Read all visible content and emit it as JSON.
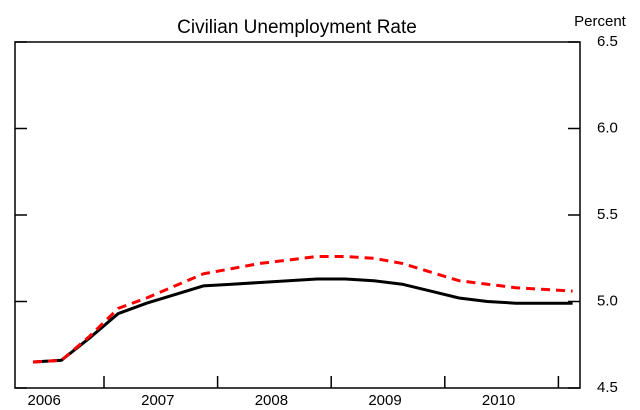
{
  "chart_data": {
    "type": "line",
    "title": "Civilian Unemployment Rate",
    "y_axis_label": "Percent",
    "categories": [
      "2006",
      null,
      null,
      null,
      "2007",
      null,
      null,
      null,
      "2008",
      null,
      null,
      null,
      "2009",
      null,
      null,
      null,
      "2010",
      null,
      null,
      null
    ],
    "series": [
      {
        "color": "#000000",
        "dashed": false,
        "values": [
          4.65,
          4.66,
          4.79,
          4.93,
          4.99,
          5.04,
          5.09,
          5.1,
          5.11,
          5.12,
          5.13,
          5.13,
          5.12,
          5.1,
          5.06,
          5.02,
          5.0,
          4.99,
          4.99,
          4.99
        ]
      },
      {
        "color": "#ff0000",
        "dashed": true,
        "values": [
          4.65,
          4.66,
          4.8,
          4.96,
          5.02,
          5.09,
          5.16,
          5.19,
          5.22,
          5.24,
          5.26,
          5.26,
          5.25,
          5.22,
          5.17,
          5.12,
          5.1,
          5.08,
          5.07,
          5.06
        ]
      }
    ],
    "ylim": [
      4.5,
      6.5
    ],
    "yticks": [
      {
        "value": 4.5,
        "label": "4.5"
      },
      {
        "value": 5,
        "label": "5.0"
      },
      {
        "value": 5.5,
        "label": "5.5"
      },
      {
        "value": 6,
        "label": "6.0"
      },
      {
        "value": 6.5,
        "label": "6.5"
      }
    ]
  }
}
